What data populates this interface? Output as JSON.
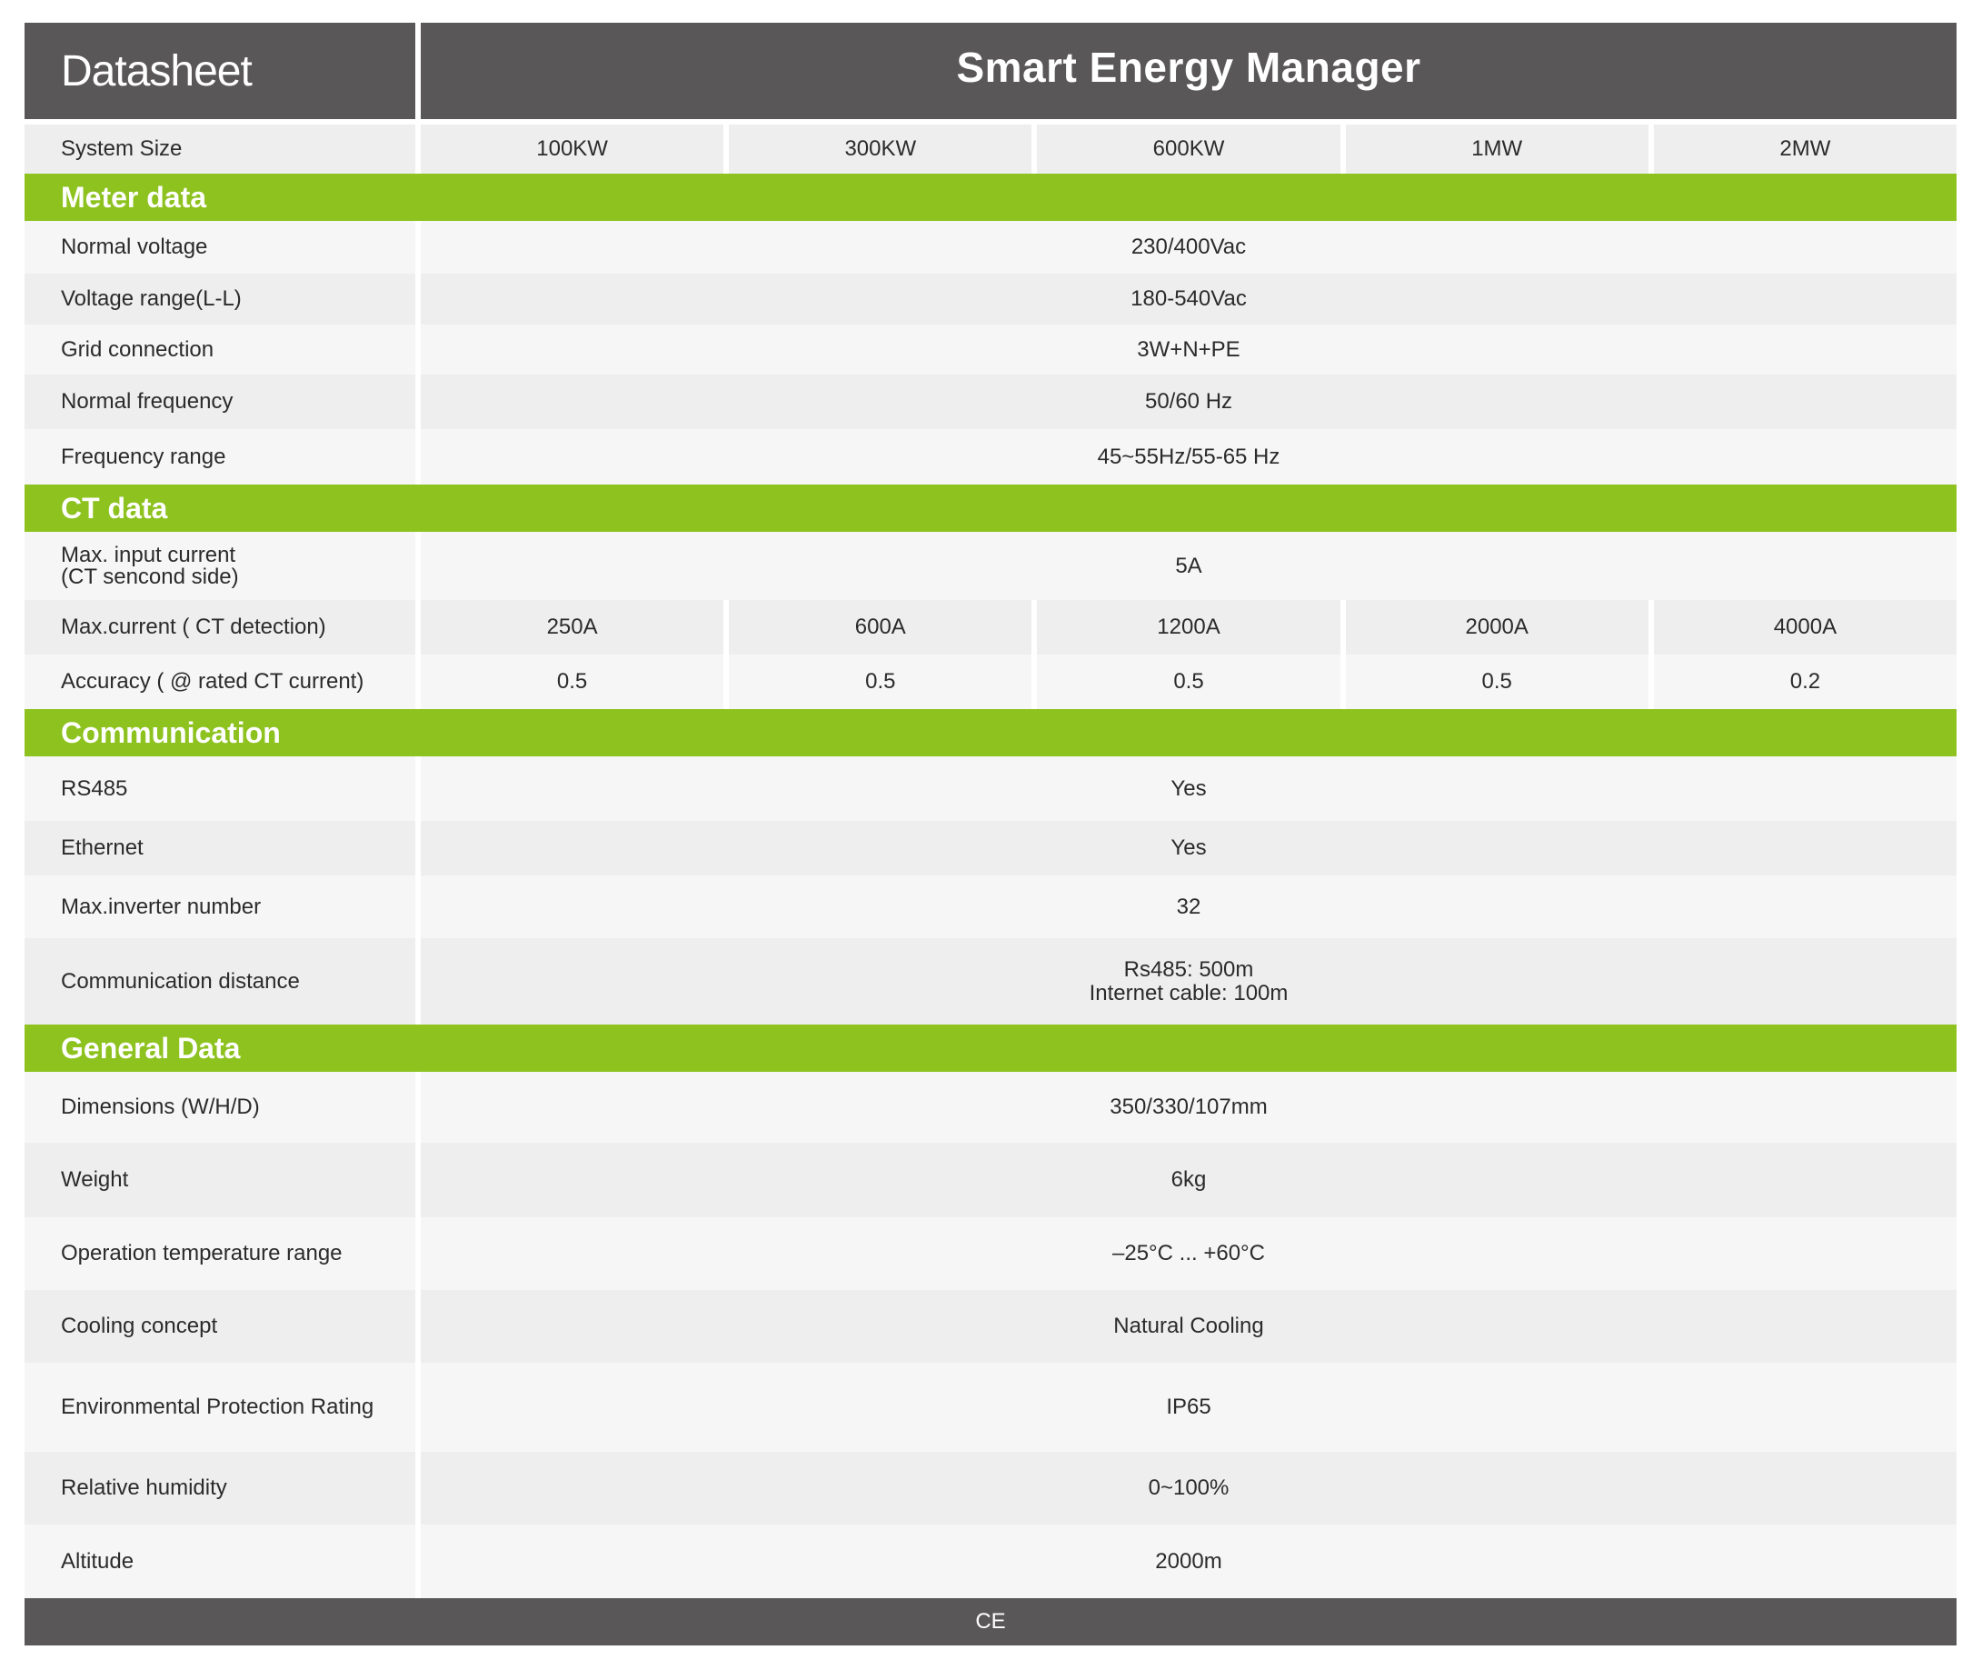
{
  "header": {
    "left_title": "Datasheet",
    "title": "Smart Energy Manager"
  },
  "system_size": {
    "label": "System Size",
    "values": [
      "100KW",
      "300KW",
      "600KW",
      "1MW",
      "2MW"
    ]
  },
  "sections": {
    "meter": {
      "title": "Meter data",
      "rows": [
        {
          "label": "Normal voltage",
          "value": "230/400Vac"
        },
        {
          "label": "Voltage range(L-L)",
          "value": "180-540Vac"
        },
        {
          "label": "Grid connection",
          "value": "3W+N+PE"
        },
        {
          "label": "Normal frequency",
          "value": "50/60 Hz"
        },
        {
          "label": "Frequency range",
          "value": "45~55Hz/55-65 Hz"
        }
      ]
    },
    "ct": {
      "title": "CT data",
      "input_label_1": "Max. input current",
      "input_label_2": "(CT sencond side)",
      "input_value": "5A",
      "max_current": {
        "label": "Max.current  ( CT detection)",
        "values": [
          "250A",
          "600A",
          "1200A",
          "2000A",
          "4000A"
        ]
      },
      "accuracy": {
        "label": "Accuracy ( @ rated CT current)",
        "values": [
          "0.5",
          "0.5",
          "0.5",
          "0.5",
          "0.2"
        ]
      }
    },
    "communication": {
      "title": "Communication",
      "rows": [
        {
          "label": "RS485",
          "value": "Yes"
        },
        {
          "label": "Ethernet",
          "value": "Yes"
        },
        {
          "label": "Max.inverter number",
          "value": "32"
        }
      ],
      "distance": {
        "label": "Communication distance",
        "line1": "Rs485: 500m",
        "line2": "Internet cable: 100m"
      }
    },
    "general": {
      "title": "General Data",
      "rows": [
        {
          "label": "Dimensions (W/H/D)",
          "value": "350/330/107mm"
        },
        {
          "label": "Weight",
          "value": "6kg"
        },
        {
          "label": "Operation temperature range",
          "value": "–25°C ... +60°C"
        },
        {
          "label": "Cooling concept",
          "value": "Natural Cooling"
        },
        {
          "label": "Environmental Protection Rating",
          "value": "IP65"
        },
        {
          "label": "Relative humidity",
          "value": "0~100%"
        },
        {
          "label": "Altitude",
          "value": "2000m"
        }
      ]
    }
  },
  "footer": {
    "text": "CE"
  }
}
